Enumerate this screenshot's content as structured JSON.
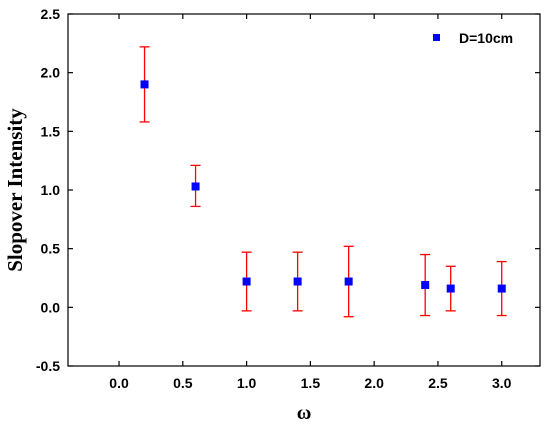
{
  "chart_data": {
    "type": "scatter",
    "title": "",
    "xlabel": "ω",
    "ylabel": "Slopover Intensity",
    "xlim": [
      -0.4,
      3.3
    ],
    "ylim": [
      -0.5,
      2.5
    ],
    "x_ticks": [
      0.0,
      0.5,
      1.0,
      1.5,
      2.0,
      2.5,
      3.0
    ],
    "x_tick_labels": [
      "0.0",
      "0.5",
      "1.0",
      "1.5",
      "2.0",
      "2.5",
      "3.0"
    ],
    "y_ticks": [
      -0.5,
      0.0,
      0.5,
      1.0,
      1.5,
      2.0,
      2.5
    ],
    "y_tick_labels": [
      "-0.5",
      "0.0",
      "0.5",
      "1.0",
      "1.5",
      "2.0",
      "2.5"
    ],
    "grid": false,
    "legend_position": "top-right",
    "marker_color": "#0000ff",
    "errorbar_color": "#ff0000",
    "series": [
      {
        "name": "D=10cm",
        "x": [
          0.2,
          0.6,
          1.0,
          1.4,
          1.8,
          2.4,
          2.6,
          3.0
        ],
        "y": [
          1.9,
          1.03,
          0.22,
          0.22,
          0.22,
          0.19,
          0.16,
          0.16
        ],
        "y_lower": [
          1.58,
          0.86,
          -0.03,
          -0.03,
          -0.08,
          -0.07,
          -0.03,
          -0.07
        ],
        "y_upper": [
          2.22,
          1.21,
          0.47,
          0.47,
          0.52,
          0.45,
          0.35,
          0.39
        ]
      }
    ]
  }
}
